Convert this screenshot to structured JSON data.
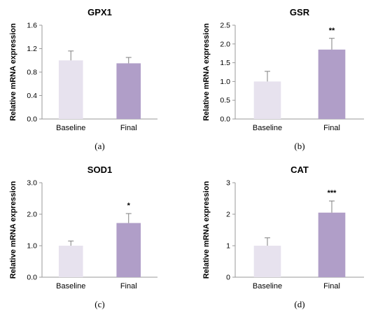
{
  "chart_data": [
    {
      "type": "bar",
      "title": "GPX1",
      "ylabel": "Relative mRNA expression",
      "caption": "(a)",
      "categories": [
        "Baseline",
        "Final"
      ],
      "values": [
        1.0,
        0.95
      ],
      "errors": [
        0.16,
        0.1
      ],
      "significance": [
        "",
        ""
      ],
      "ylim": [
        0,
        1.6
      ],
      "yticks": [
        "0.0",
        "0.4",
        "0.8",
        "1.2",
        "1.6"
      ],
      "bar_colors": [
        "#e7e2ee",
        "#b09ec8"
      ]
    },
    {
      "type": "bar",
      "title": "GSR",
      "ylabel": "Relative mRNA expression",
      "caption": "(b)",
      "categories": [
        "Baseline",
        "Final"
      ],
      "values": [
        1.0,
        1.85
      ],
      "errors": [
        0.27,
        0.3
      ],
      "significance": [
        "",
        "**"
      ],
      "ylim": [
        0,
        2.5
      ],
      "yticks": [
        "0.0",
        "0.5",
        "1.0",
        "1.5",
        "2.0",
        "2.5"
      ],
      "bar_colors": [
        "#e7e2ee",
        "#b09ec8"
      ]
    },
    {
      "type": "bar",
      "title": "SOD1",
      "ylabel": "Relative mRNA expression",
      "caption": "(c)",
      "categories": [
        "Baseline",
        "Final"
      ],
      "values": [
        1.0,
        1.72
      ],
      "errors": [
        0.15,
        0.3
      ],
      "significance": [
        "",
        "*"
      ],
      "ylim": [
        0,
        3.0
      ],
      "yticks": [
        "0.0",
        "1.0",
        "2.0",
        "3.0"
      ],
      "bar_colors": [
        "#e7e2ee",
        "#b09ec8"
      ]
    },
    {
      "type": "bar",
      "title": "CAT",
      "ylabel": "Relative mRNA expression",
      "caption": "(d)",
      "categories": [
        "Baseline",
        "Final"
      ],
      "values": [
        1.0,
        2.05
      ],
      "errors": [
        0.25,
        0.37
      ],
      "significance": [
        "",
        "***"
      ],
      "ylim": [
        0,
        3
      ],
      "yticks": [
        "0",
        "1",
        "2",
        "3"
      ],
      "bar_colors": [
        "#e7e2ee",
        "#b09ec8"
      ]
    }
  ]
}
